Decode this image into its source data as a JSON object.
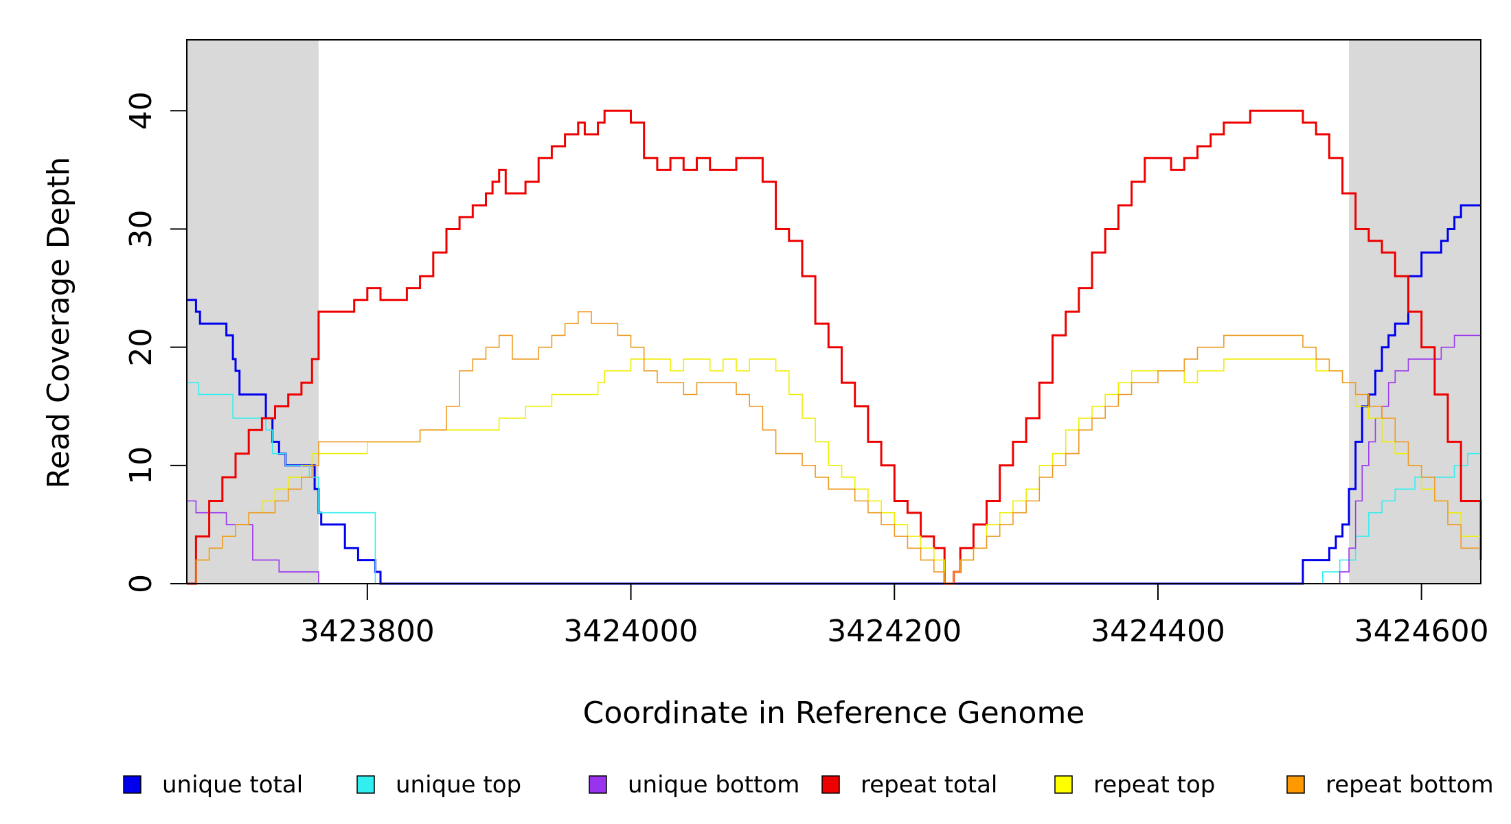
{
  "chart_data": {
    "type": "line",
    "title": "",
    "xlabel": "Coordinate in Reference Genome",
    "ylabel": "Read Coverage Depth",
    "xlim": [
      3423663,
      3424645
    ],
    "ylim": [
      0,
      46
    ],
    "x_ticks": [
      3423800,
      3424000,
      3424200,
      3424400,
      3424600
    ],
    "y_ticks": [
      0,
      10,
      20,
      30,
      40
    ],
    "x_tick_labels": [
      "3423800",
      "3424000",
      "3424200",
      "3424400",
      "3424600"
    ],
    "y_tick_labels": [
      "0",
      "10",
      "20",
      "30",
      "40"
    ],
    "grid": false,
    "legend_position": "bottom",
    "shaded_regions": [
      {
        "x0": 3423663,
        "x1": 3423763,
        "color": "#d9d9d9"
      },
      {
        "x0": 3424545,
        "x1": 3424645,
        "color": "#d9d9d9"
      }
    ],
    "series": [
      {
        "name": "unique total",
        "color": "#0000ee",
        "line_color": "#0000ee",
        "x": [
          3423663,
          3423670,
          3423673,
          3423683,
          3423693,
          3423698,
          3423700,
          3423703,
          3423718,
          3423723,
          3423728,
          3423733,
          3423738,
          3423743,
          3423753,
          3423760,
          3423763,
          3423765,
          3423773,
          3423783,
          3423793,
          3423800,
          3423806,
          3423810,
          3424505,
          3424510,
          3424525,
          3424530,
          3424535,
          3424540,
          3424545,
          3424550,
          3424555,
          3424560,
          3424565,
          3424570,
          3424575,
          3424580,
          3424590,
          3424600,
          3424610,
          3424615,
          3424620,
          3424625,
          3424630,
          3424645
        ],
        "y": [
          24,
          23,
          22,
          22,
          21,
          19,
          18,
          16,
          16,
          14,
          12,
          11,
          10,
          10,
          10,
          8,
          6,
          5,
          5,
          3,
          2,
          2,
          1,
          0,
          0,
          2,
          2,
          3,
          4,
          5,
          8,
          12,
          15,
          16,
          18,
          20,
          21,
          22,
          26,
          28,
          28,
          29,
          30,
          31,
          32,
          32
        ],
        "style": "step"
      },
      {
        "name": "unique top",
        "color": "#33eeee",
        "line_color": "#33eeee",
        "x": [
          3423663,
          3423672,
          3423698,
          3423723,
          3423728,
          3423738,
          3423756,
          3423763,
          3423806,
          3424510,
          3424525,
          3424538,
          3424550,
          3424560,
          3424570,
          3424580,
          3424595,
          3424610,
          3424625,
          3424635,
          3424645
        ],
        "y": [
          17,
          16,
          14,
          13,
          11,
          10,
          9,
          6,
          0,
          0,
          1,
          2,
          4,
          6,
          7,
          8,
          9,
          9,
          10,
          11,
          11
        ],
        "style": "step"
      },
      {
        "name": "unique bottom",
        "color": "#9933ee",
        "line_color": "#9933ee",
        "x": [
          3423663,
          3423670,
          3423683,
          3423693,
          3423703,
          3423713,
          3423733,
          3423753,
          3423763,
          3424510,
          3424538,
          3424545,
          3424550,
          3424555,
          3424560,
          3424565,
          3424570,
          3424575,
          3424580,
          3424590,
          3424600,
          3424615,
          3424625,
          3424645
        ],
        "y": [
          7,
          6,
          6,
          5,
          5,
          2,
          1,
          1,
          0,
          0,
          1,
          3,
          7,
          10,
          12,
          14,
          15,
          17,
          18,
          19,
          19,
          20,
          21,
          21
        ],
        "style": "step"
      },
      {
        "name": "repeat total",
        "color": "#ee0000",
        "line_color": "#ee0000",
        "x": [
          3423663,
          3423670,
          3423680,
          3423690,
          3423700,
          3423710,
          3423720,
          3423730,
          3423740,
          3423750,
          3423758,
          3423763,
          3423770,
          3423780,
          3423790,
          3423800,
          3423810,
          3423820,
          3423830,
          3423840,
          3423850,
          3423860,
          3423870,
          3423880,
          3423890,
          3423895,
          3423900,
          3423905,
          3423910,
          3423920,
          3423930,
          3423940,
          3423950,
          3423960,
          3423965,
          3423970,
          3423975,
          3423980,
          3423990,
          3424000,
          3424010,
          3424020,
          3424030,
          3424040,
          3424050,
          3424060,
          3424070,
          3424080,
          3424090,
          3424100,
          3424110,
          3424120,
          3424130,
          3424140,
          3424150,
          3424160,
          3424170,
          3424180,
          3424190,
          3424200,
          3424210,
          3424220,
          3424230,
          3424238,
          3424245,
          3424250,
          3424260,
          3424270,
          3424280,
          3424290,
          3424300,
          3424310,
          3424320,
          3424330,
          3424340,
          3424350,
          3424360,
          3424370,
          3424380,
          3424390,
          3424400,
          3424410,
          3424420,
          3424430,
          3424440,
          3424450,
          3424460,
          3424470,
          3424480,
          3424490,
          3424500,
          3424510,
          3424520,
          3424530,
          3424540,
          3424550,
          3424560,
          3424570,
          3424580,
          3424590,
          3424600,
          3424610,
          3424620,
          3424630,
          3424645
        ],
        "y": [
          0,
          4,
          7,
          9,
          11,
          13,
          14,
          15,
          16,
          17,
          19,
          23,
          23,
          23,
          24,
          25,
          24,
          24,
          25,
          26,
          28,
          30,
          31,
          32,
          33,
          34,
          35,
          33,
          33,
          34,
          36,
          37,
          38,
          39,
          38,
          38,
          39,
          40,
          40,
          39,
          36,
          35,
          36,
          35,
          36,
          35,
          35,
          36,
          36,
          34,
          30,
          29,
          26,
          22,
          20,
          17,
          15,
          12,
          10,
          7,
          6,
          4,
          3,
          0,
          1,
          3,
          5,
          7,
          10,
          12,
          14,
          17,
          21,
          23,
          25,
          28,
          30,
          32,
          34,
          36,
          36,
          35,
          36,
          37,
          38,
          39,
          39,
          40,
          40,
          40,
          40,
          39,
          38,
          36,
          33,
          30,
          29,
          28,
          26,
          23,
          20,
          16,
          12,
          7,
          2
        ],
        "style": "step"
      },
      {
        "name": "repeat top",
        "color": "#ffff00",
        "line_color": "#eeee00",
        "x": [
          3423663,
          3423670,
          3423680,
          3423690,
          3423700,
          3423710,
          3423720,
          3423730,
          3423740,
          3423750,
          3423758,
          3423763,
          3423780,
          3423800,
          3423820,
          3423840,
          3423860,
          3423880,
          3423900,
          3423920,
          3423940,
          3423960,
          3423975,
          3423980,
          3423990,
          3424000,
          3424010,
          3424020,
          3424030,
          3424040,
          3424050,
          3424060,
          3424070,
          3424080,
          3424090,
          3424100,
          3424110,
          3424120,
          3424130,
          3424140,
          3424150,
          3424160,
          3424170,
          3424180,
          3424190,
          3424200,
          3424210,
          3424220,
          3424230,
          3424238,
          3424245,
          3424250,
          3424260,
          3424270,
          3424280,
          3424290,
          3424300,
          3424310,
          3424320,
          3424330,
          3424340,
          3424350,
          3424360,
          3424370,
          3424380,
          3424390,
          3424400,
          3424410,
          3424420,
          3424430,
          3424440,
          3424450,
          3424460,
          3424470,
          3424480,
          3424490,
          3424500,
          3424510,
          3424520,
          3424530,
          3424540,
          3424550,
          3424560,
          3424570,
          3424580,
          3424590,
          3424600,
          3424610,
          3424620,
          3424630,
          3424645
        ],
        "y": [
          0,
          2,
          3,
          4,
          5,
          6,
          7,
          8,
          9,
          10,
          11,
          11,
          11,
          12,
          12,
          13,
          13,
          13,
          14,
          15,
          16,
          16,
          17,
          18,
          18,
          19,
          19,
          19,
          18,
          19,
          19,
          18,
          19,
          18,
          19,
          19,
          18,
          16,
          14,
          12,
          10,
          9,
          8,
          7,
          6,
          5,
          4,
          3,
          2,
          0,
          1,
          2,
          3,
          5,
          6,
          7,
          8,
          10,
          11,
          13,
          14,
          15,
          16,
          17,
          18,
          18,
          18,
          18,
          17,
          18,
          18,
          19,
          19,
          19,
          19,
          19,
          19,
          19,
          18,
          18,
          17,
          15,
          14,
          12,
          11,
          10,
          8,
          7,
          6,
          4,
          2
        ],
        "style": "step"
      },
      {
        "name": "repeat bottom",
        "color": "#ff9900",
        "line_color": "#ee9922",
        "x": [
          3423663,
          3423670,
          3423680,
          3423690,
          3423700,
          3423710,
          3423720,
          3423730,
          3423740,
          3423750,
          3423758,
          3423763,
          3423780,
          3423800,
          3423820,
          3423840,
          3423860,
          3423870,
          3423880,
          3423890,
          3423900,
          3423910,
          3423920,
          3423930,
          3423940,
          3423950,
          3423960,
          3423970,
          3423980,
          3423990,
          3424000,
          3424010,
          3424020,
          3424030,
          3424040,
          3424050,
          3424060,
          3424070,
          3424080,
          3424090,
          3424100,
          3424110,
          3424120,
          3424130,
          3424140,
          3424150,
          3424160,
          3424170,
          3424180,
          3424190,
          3424200,
          3424210,
          3424220,
          3424230,
          3424238,
          3424245,
          3424250,
          3424260,
          3424270,
          3424280,
          3424290,
          3424300,
          3424310,
          3424320,
          3424330,
          3424340,
          3424350,
          3424360,
          3424370,
          3424380,
          3424390,
          3424400,
          3424410,
          3424420,
          3424430,
          3424440,
          3424450,
          3424460,
          3424470,
          3424480,
          3424490,
          3424500,
          3424510,
          3424520,
          3424530,
          3424540,
          3424550,
          3424560,
          3424570,
          3424580,
          3424590,
          3424600,
          3424610,
          3424620,
          3424630,
          3424645
        ],
        "y": [
          0,
          2,
          3,
          4,
          5,
          6,
          6,
          7,
          8,
          9,
          10,
          12,
          12,
          12,
          12,
          13,
          15,
          18,
          19,
          20,
          21,
          19,
          19,
          20,
          21,
          22,
          23,
          22,
          22,
          21,
          20,
          18,
          17,
          17,
          16,
          17,
          17,
          17,
          16,
          15,
          13,
          11,
          11,
          10,
          9,
          8,
          8,
          7,
          6,
          5,
          4,
          3,
          2,
          1,
          0,
          1,
          2,
          3,
          4,
          5,
          6,
          7,
          9,
          10,
          11,
          13,
          14,
          15,
          16,
          17,
          17,
          18,
          18,
          19,
          20,
          20,
          21,
          21,
          21,
          21,
          21,
          21,
          20,
          19,
          18,
          17,
          16,
          15,
          14,
          12,
          10,
          9,
          7,
          5,
          3,
          1
        ],
        "style": "step"
      }
    ]
  }
}
